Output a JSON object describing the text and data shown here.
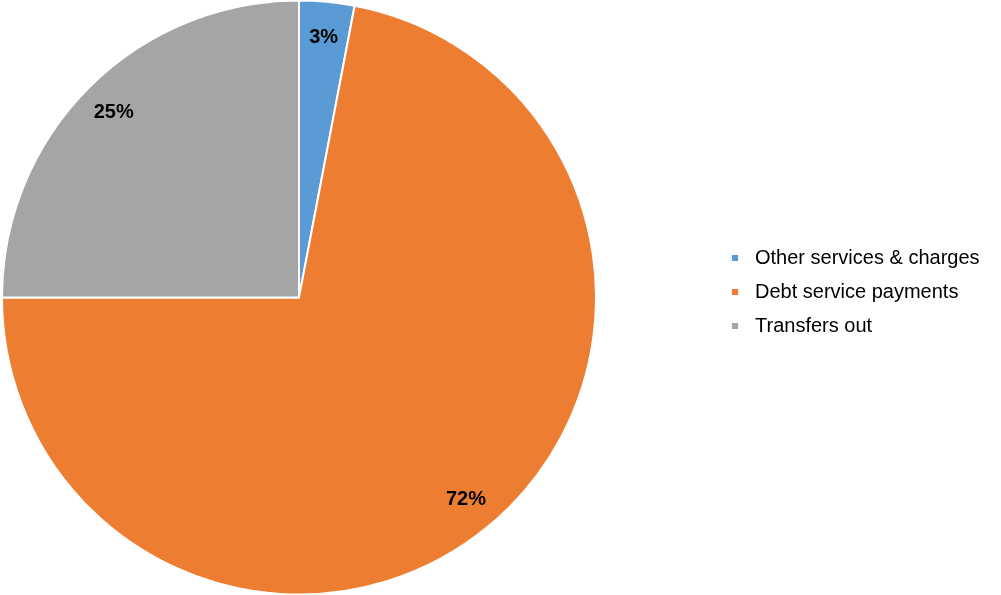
{
  "chart_data": {
    "type": "pie",
    "categories": [
      "Other services & charges",
      "Debt service payments",
      "Transfers out"
    ],
    "values": [
      3,
      72,
      25
    ],
    "colors": [
      "#5b9bd5",
      "#ed7d31",
      "#a5a5a5"
    ],
    "value_labels": [
      "3%",
      "72%",
      "25%"
    ],
    "legend": "right"
  }
}
